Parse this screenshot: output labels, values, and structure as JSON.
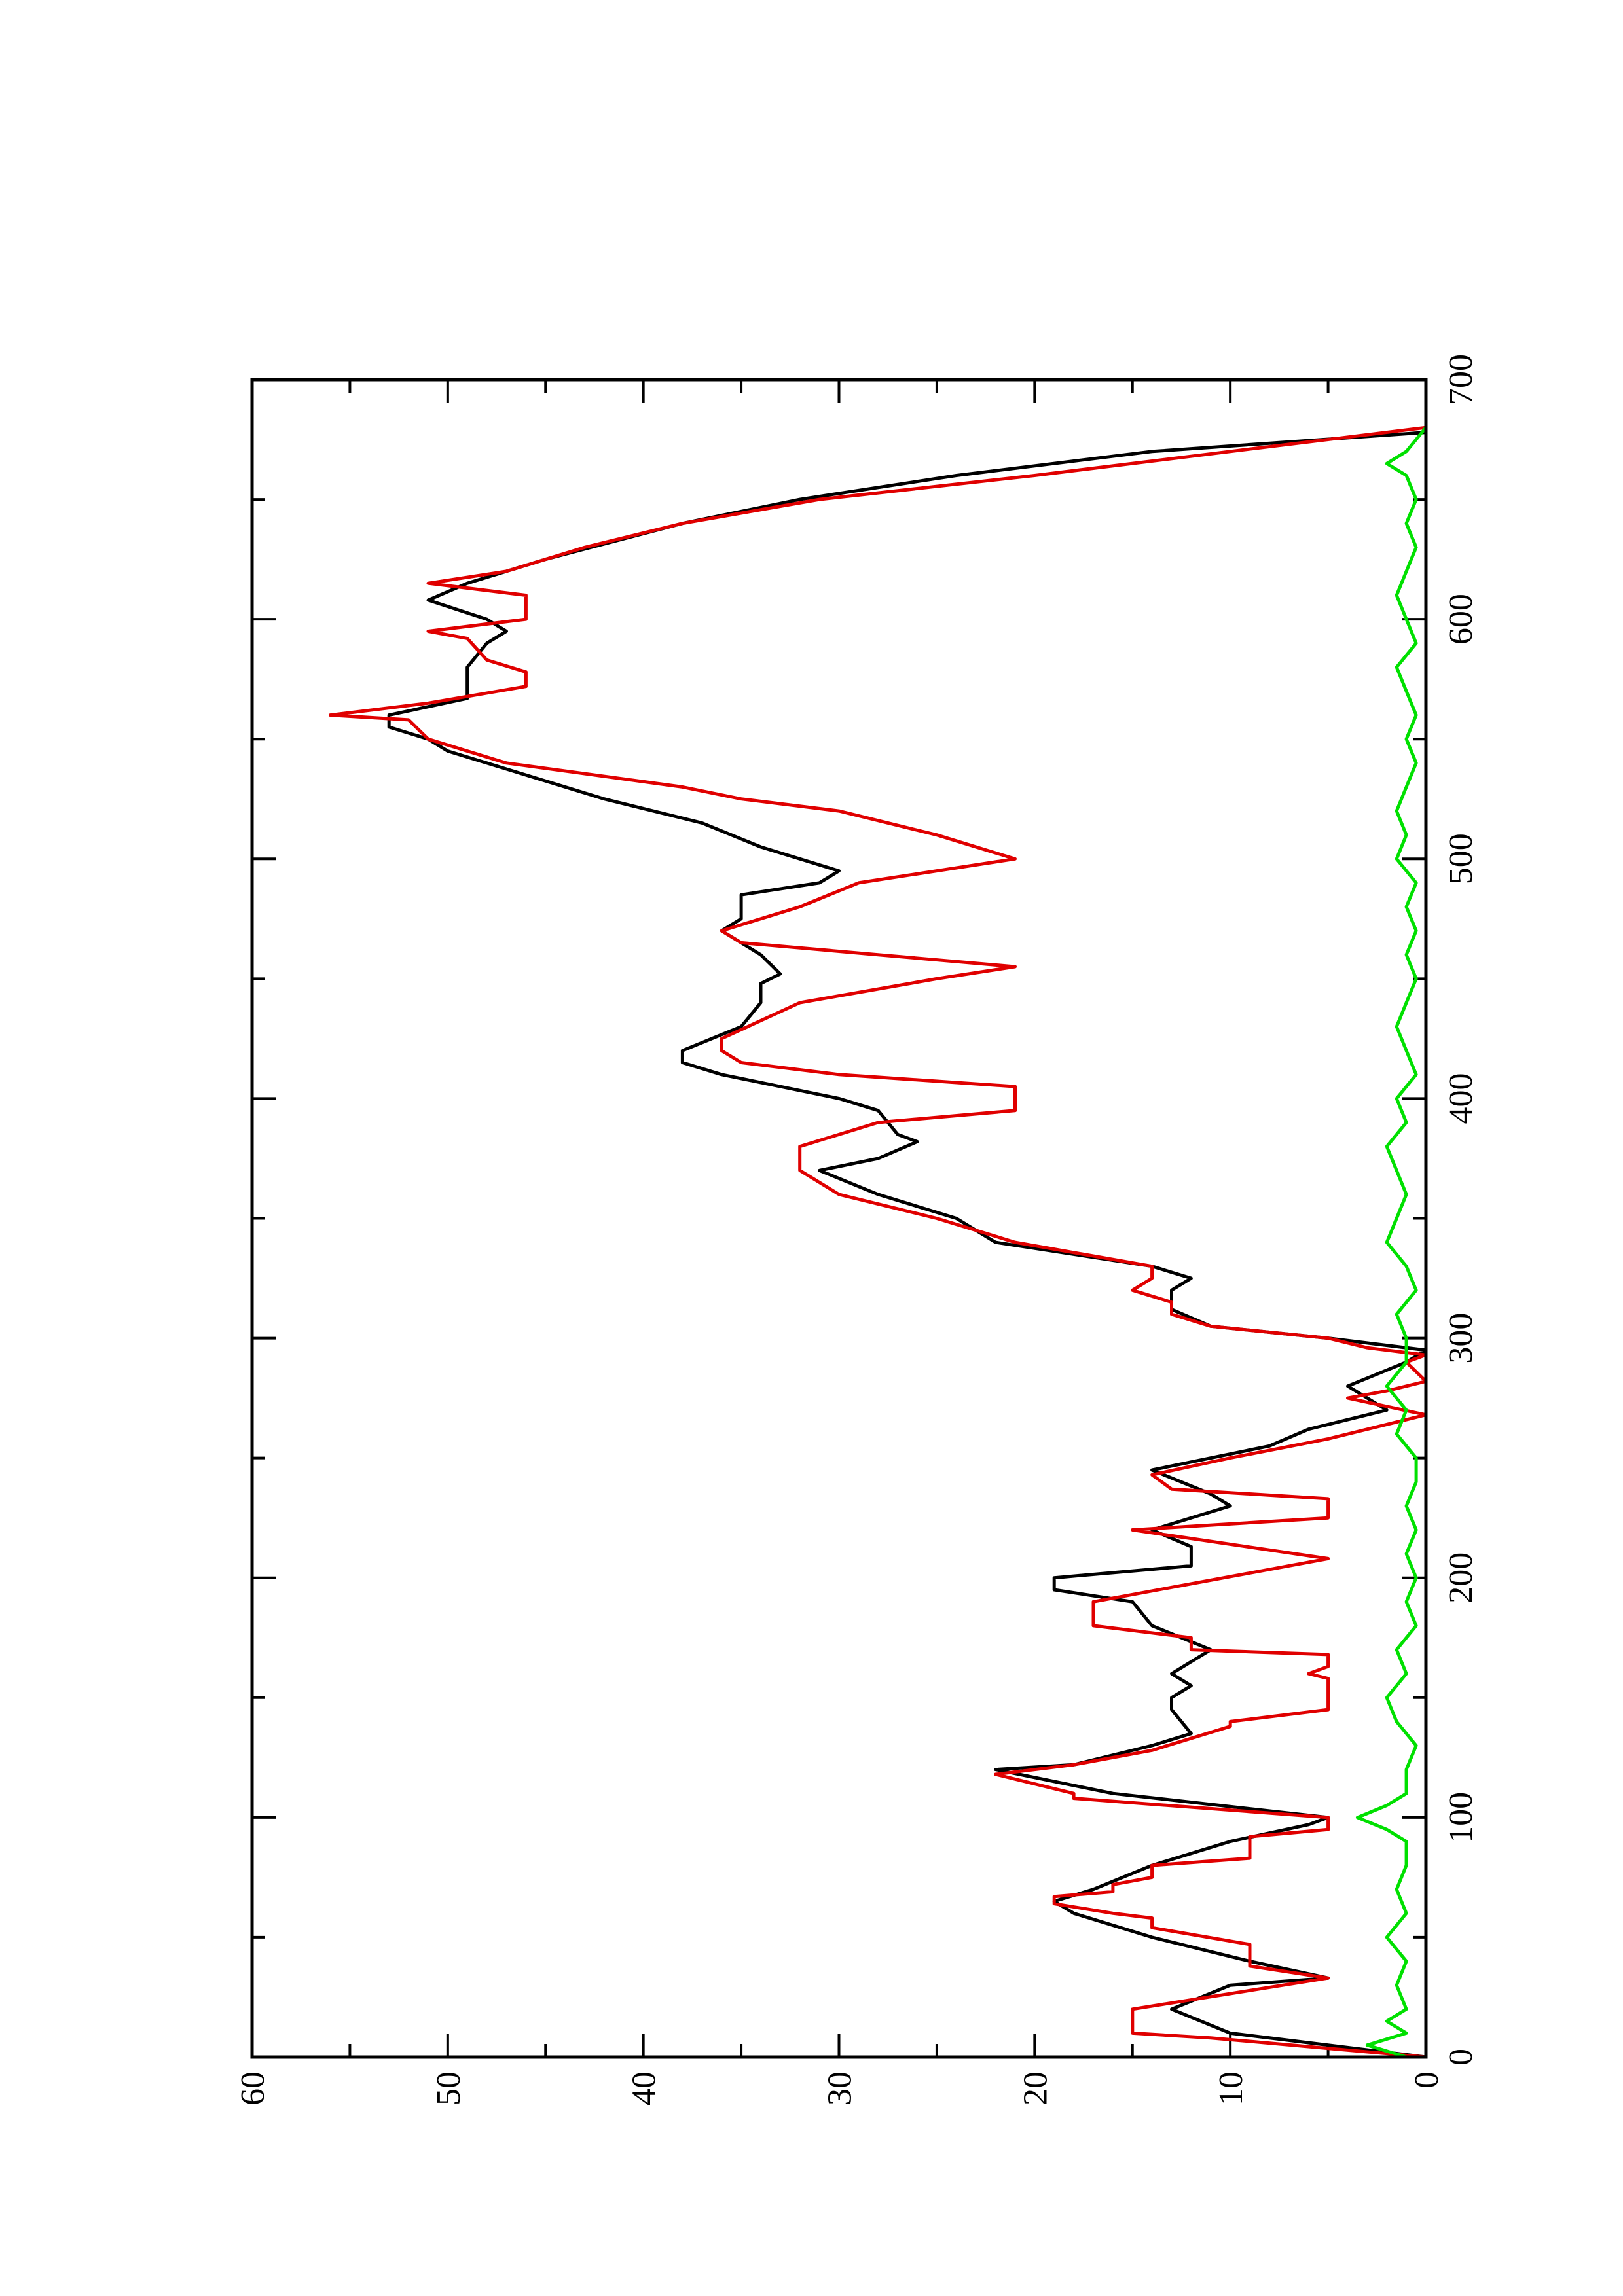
{
  "chart_data": {
    "type": "line",
    "xlim": [
      0,
      700
    ],
    "xticks": [
      0,
      100,
      200,
      300,
      400,
      500,
      600,
      700
    ],
    "xminorticks": [
      50,
      150,
      250,
      350,
      450,
      550,
      650
    ],
    "ylim": [
      0,
      60
    ],
    "yticks": [
      0,
      10,
      20,
      30,
      40,
      50,
      60
    ],
    "yminorticks": [
      5,
      15,
      25,
      35,
      45,
      55
    ],
    "rotated": true,
    "series": [
      {
        "color": "#000000",
        "x": [
          0,
          10,
          20,
          30,
          33,
          40,
          50,
          60,
          65,
          70,
          80,
          90,
          97,
          100,
          110,
          120,
          122,
          130,
          135,
          145,
          150,
          155,
          160,
          165,
          170,
          180,
          190,
          195,
          200,
          205,
          213,
          220,
          230,
          235,
          245,
          255,
          262,
          270,
          280,
          290,
          295,
          300,
          305,
          312,
          320,
          325,
          330,
          340,
          350,
          360,
          370,
          375,
          382,
          385,
          395,
          400,
          410,
          415,
          420,
          430,
          440,
          448,
          452,
          460,
          470,
          475,
          485,
          490,
          495,
          505,
          515,
          525,
          535,
          545,
          550,
          555,
          560,
          567,
          580,
          590,
          595,
          600,
          608,
          615,
          625,
          640,
          650,
          660,
          670,
          678
        ],
        "values": [
          0,
          10,
          13,
          10,
          5,
          9,
          14,
          18,
          19,
          17,
          14,
          10,
          6,
          5,
          16,
          22,
          18,
          14,
          12,
          13,
          13,
          12,
          13,
          12,
          11,
          14,
          15,
          19,
          19,
          12,
          12,
          14,
          10,
          11,
          14,
          8,
          6,
          2,
          4,
          1,
          0,
          5,
          11,
          13,
          13,
          12,
          14,
          22,
          24,
          28,
          31,
          28,
          26,
          27,
          28,
          30,
          36,
          38,
          38,
          35,
          34,
          34,
          33,
          34,
          36,
          35,
          35,
          31,
          30,
          34,
          37,
          42,
          46,
          50,
          51,
          53,
          53,
          49,
          49,
          48,
          47,
          48,
          51,
          49,
          45,
          38,
          32,
          24,
          14,
          0
        ]
      },
      {
        "color": "#e00000",
        "x": [
          0,
          8,
          10,
          20,
          33,
          38,
          47,
          54,
          58,
          60,
          64,
          67,
          69,
          72,
          75,
          80,
          83,
          92,
          95,
          100,
          108,
          110,
          118,
          122,
          128,
          138,
          140,
          145,
          158,
          160,
          163,
          168,
          170,
          175,
          180,
          190,
          208,
          220,
          225,
          233,
          237,
          243,
          250,
          258,
          268,
          275,
          278,
          282,
          290,
          293,
          296,
          300,
          305,
          310,
          315,
          320,
          325,
          330,
          340,
          350,
          360,
          370,
          380,
          390,
          395,
          405,
          410,
          415,
          420,
          425,
          440,
          450,
          455,
          460,
          465,
          470,
          480,
          490,
          500,
          510,
          520,
          525,
          530,
          540,
          550,
          558,
          560,
          565,
          572,
          578,
          583,
          592,
          595,
          600,
          610,
          615,
          620,
          630,
          640,
          650,
          660,
          670,
          680
        ],
        "values": [
          0,
          11,
          15,
          15,
          5,
          9,
          9,
          14,
          14,
          16,
          19,
          19,
          16,
          16,
          14,
          14,
          9,
          9,
          5,
          5,
          18,
          18,
          22,
          18,
          14,
          10,
          10,
          5,
          5,
          6,
          5,
          5,
          12,
          12,
          17,
          17,
          5,
          15,
          5,
          5,
          13,
          14,
          10,
          5,
          0,
          4,
          2,
          0,
          1,
          0,
          3,
          5,
          11,
          13,
          13,
          15,
          14,
          14,
          21,
          25,
          30,
          32,
          32,
          28,
          21,
          21,
          30,
          35,
          36,
          36,
          32,
          25,
          21,
          28,
          35,
          36,
          32,
          29,
          21,
          25,
          30,
          35,
          38,
          47,
          51,
          52,
          56,
          51,
          46,
          46,
          48,
          49,
          51,
          46,
          46,
          51,
          47,
          43,
          38,
          31,
          20,
          10,
          0
        ]
      },
      {
        "color": "#00e000",
        "x": [
          0,
          5,
          10,
          15,
          20,
          30,
          40,
          50,
          60,
          70,
          80,
          90,
          95,
          100,
          105,
          110,
          120,
          130,
          140,
          150,
          160,
          170,
          180,
          190,
          200,
          210,
          220,
          230,
          240,
          250,
          260,
          270,
          280,
          290,
          300,
          310,
          320,
          330,
          340,
          350,
          360,
          370,
          380,
          390,
          400,
          410,
          420,
          430,
          440,
          450,
          460,
          470,
          480,
          490,
          500,
          510,
          520,
          530,
          540,
          550,
          560,
          570,
          580,
          590,
          600,
          610,
          620,
          630,
          640,
          650,
          660,
          665,
          670,
          680
        ],
        "values": [
          1,
          3,
          1,
          2,
          1,
          1.5,
          1,
          2,
          1,
          1.5,
          1,
          1,
          2,
          3.5,
          2,
          1,
          1,
          0.5,
          1.5,
          2,
          1,
          1.5,
          0.5,
          1,
          0.5,
          1,
          0.5,
          1,
          0.5,
          0.5,
          1.5,
          1,
          2,
          1,
          1,
          1.5,
          0.5,
          1,
          2,
          1.5,
          1,
          1.5,
          2,
          1,
          1.5,
          0.5,
          1,
          1.5,
          1,
          0.5,
          1,
          0.5,
          1,
          0.5,
          1.5,
          1,
          1.5,
          1,
          0.5,
          1,
          0.5,
          1,
          1.5,
          0.5,
          1,
          1.5,
          1,
          0.5,
          1,
          0.5,
          1,
          2,
          1,
          0
        ]
      }
    ]
  }
}
